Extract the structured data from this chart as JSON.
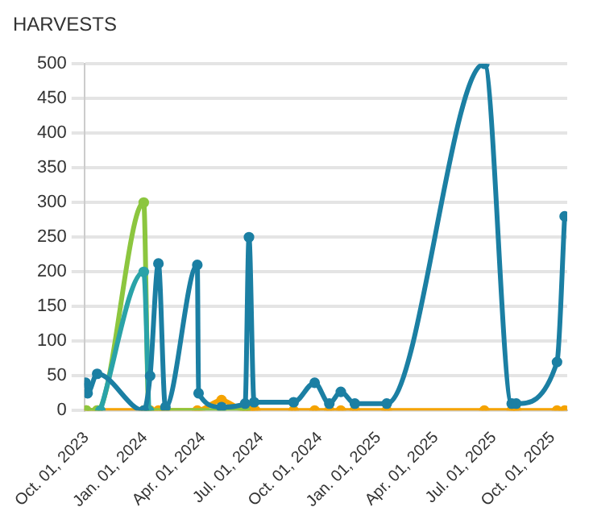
{
  "chart_data": {
    "type": "line",
    "title": "HARVESTS",
    "xlim": [
      "2023-09-28",
      "2025-10-24"
    ],
    "ylim": [
      0,
      500
    ],
    "yticks": [
      0,
      50,
      100,
      150,
      200,
      250,
      300,
      350,
      400,
      450,
      500
    ],
    "xticks": [
      {
        "value": "2023-10-01",
        "label": "Oct. 01, 2023"
      },
      {
        "value": "2024-01-01",
        "label": "Jan. 01, 2024"
      },
      {
        "value": "2024-04-01",
        "label": "Apr. 01, 2024"
      },
      {
        "value": "2024-07-01",
        "label": "Jul. 01, 2024"
      },
      {
        "value": "2024-10-01",
        "label": "Oct. 01, 2024"
      },
      {
        "value": "2025-01-01",
        "label": "Jan. 01, 2025"
      },
      {
        "value": "2025-04-01",
        "label": "Apr. 01, 2025"
      },
      {
        "value": "2025-07-01",
        "label": "Jul. 01, 2025"
      },
      {
        "value": "2025-10-01",
        "label": "Oct. 01, 2025"
      }
    ],
    "grid": "y",
    "marker": "circle",
    "line_style": "solid",
    "legend": false,
    "series": [
      {
        "color": "#1b7fa3",
        "x": [
          "2023-09-30",
          "2023-10-03",
          "2023-10-18",
          "2023-12-30",
          "2024-01-09",
          "2024-01-22",
          "2024-02-02",
          "2024-03-23",
          "2024-03-25",
          "2024-04-30",
          "2024-06-06",
          "2024-06-12",
          "2024-06-20",
          "2024-08-21",
          "2024-09-23",
          "2024-10-16",
          "2024-11-03",
          "2024-11-25",
          "2025-01-14",
          "2025-06-16",
          "2025-07-29",
          "2025-08-05",
          "2025-10-08",
          "2025-10-20"
        ],
        "values": [
          40,
          25,
          53,
          0,
          50,
          212,
          5,
          210,
          25,
          5,
          10,
          250,
          12,
          12,
          40,
          10,
          27,
          10,
          10,
          500,
          10,
          10,
          70,
          280
        ]
      },
      {
        "color": "#2aa3a8",
        "x": [
          "2023-10-23",
          "2023-12-30",
          "2024-01-07"
        ],
        "values": [
          0,
          200,
          0
        ]
      },
      {
        "color": "#8cc63f",
        "x": [
          "2023-10-01",
          "2023-10-18",
          "2023-12-30",
          "2024-01-07",
          "2024-04-30",
          "2024-06-06"
        ],
        "values": [
          0,
          0,
          300,
          0,
          0,
          0
        ]
      },
      {
        "color": "#f5a300",
        "x": [
          "2023-10-01",
          "2023-10-18",
          "2023-12-30",
          "2024-01-09",
          "2024-01-22",
          "2024-02-02",
          "2024-03-23",
          "2024-04-30",
          "2024-06-06",
          "2024-06-14",
          "2024-06-22",
          "2024-08-21",
          "2024-09-23",
          "2024-10-16",
          "2024-11-03",
          "2024-11-25",
          "2025-01-14",
          "2025-06-16",
          "2025-07-29",
          "2025-08-05",
          "2025-10-08",
          "2025-10-20"
        ],
        "values": [
          0,
          0,
          0,
          0,
          0,
          0,
          0,
          15,
          0,
          0,
          0,
          0,
          0,
          0,
          0,
          0,
          0,
          0,
          0,
          0,
          0,
          0
        ]
      }
    ]
  }
}
